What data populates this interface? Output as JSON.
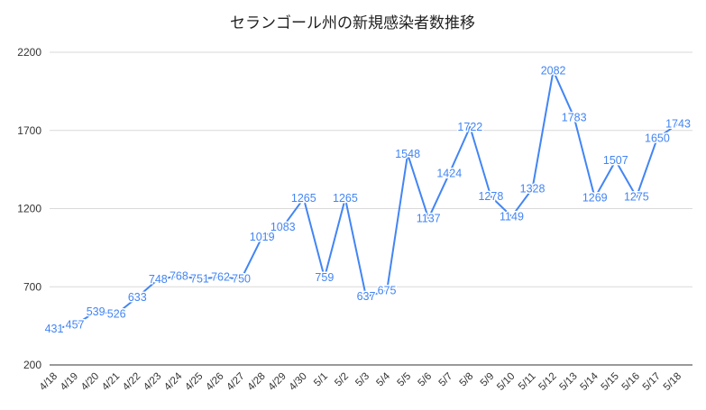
{
  "chart_data": {
    "type": "line",
    "title": "セランゴール州の新規感染者数推移",
    "xlabel": "",
    "ylabel": "",
    "ylim": [
      200,
      2200
    ],
    "yticks": [
      200,
      700,
      1200,
      1700,
      2200
    ],
    "grid": true,
    "legend": "none",
    "series_color": "#4285f4",
    "categories": [
      "4/18",
      "4/19",
      "4/20",
      "4/21",
      "4/22",
      "4/23",
      "4/24",
      "4/25",
      "4/26",
      "4/27",
      "4/28",
      "4/29",
      "4/30",
      "5/1",
      "5/2",
      "5/3",
      "5/4",
      "5/5",
      "5/6",
      "5/7",
      "5/8",
      "5/9",
      "5/10",
      "5/11",
      "5/12",
      "5/13",
      "5/14",
      "5/15",
      "5/16",
      "5/17",
      "5/18"
    ],
    "series": [
      {
        "values": [
          431,
          457,
          539,
          526,
          633,
          748,
          768,
          751,
          762,
          750,
          1019,
          1083,
          1265,
          759,
          1265,
          637,
          675,
          1548,
          1137,
          1424,
          1722,
          1278,
          1149,
          1328,
          2082,
          1783,
          1269,
          1507,
          1275,
          1650,
          1743
        ]
      }
    ]
  }
}
